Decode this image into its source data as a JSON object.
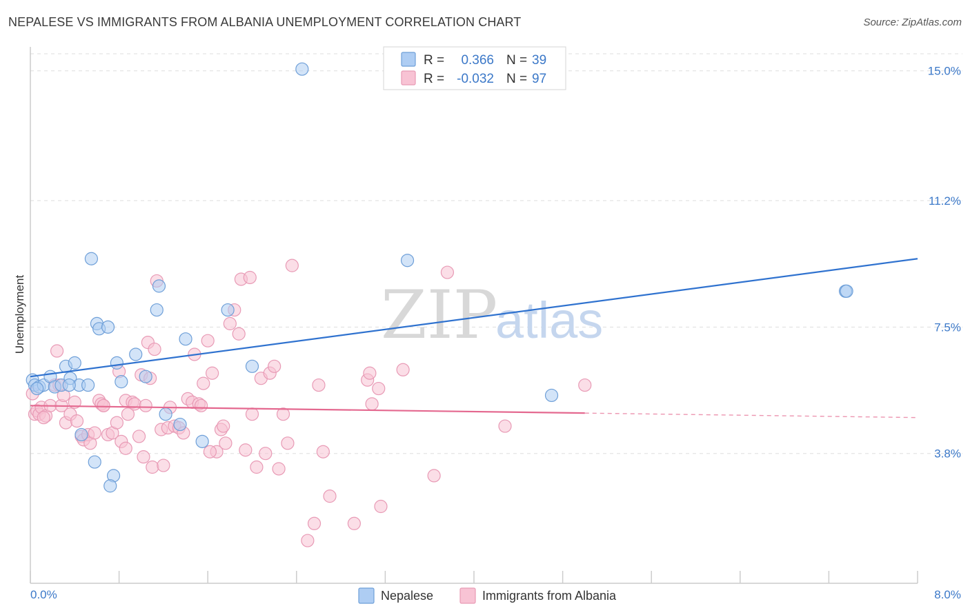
{
  "title": "NEPALESE VS IMMIGRANTS FROM ALBANIA UNEMPLOYMENT CORRELATION CHART",
  "source": "Source: ZipAtlas.com",
  "watermark": {
    "zip": "ZIP",
    "atlas": "atlas"
  },
  "legend_box": {
    "rows": [
      {
        "r_label": "R =",
        "r_value": "0.366",
        "n_label": "N =",
        "n_value": "39"
      },
      {
        "r_label": "R =",
        "r_value": "-0.032",
        "n_label": "N =",
        "n_value": "97"
      }
    ]
  },
  "bottom_legend": {
    "items": [
      "Nepalese",
      "Immigrants from Albania"
    ]
  },
  "colors": {
    "nepalese_fill": "#aecdf3",
    "nepalese_stroke": "#6e9fd8",
    "nepalese_line": "#2f72cf",
    "albania_fill": "#f8c3d4",
    "albania_stroke": "#e89ab5",
    "albania_line": "#e4688f",
    "tick_text": "#3b78c8",
    "grid": "#dddddd"
  },
  "chart_data": {
    "type": "scatter",
    "title": "NEPALESE VS IMMIGRANTS FROM ALBANIA UNEMPLOYMENT CORRELATION CHART",
    "xlabel": "",
    "ylabel": "Unemployment",
    "xlim": [
      0.0,
      8.0
    ],
    "ylim": [
      0.0,
      15.7
    ],
    "x_tick_labels": [
      "0.0%",
      "8.0%"
    ],
    "y_ticks": [
      3.8,
      7.5,
      11.2,
      15.0
    ],
    "y_tick_labels": [
      "3.8%",
      "7.5%",
      "11.2%",
      "15.0%"
    ],
    "grid": true,
    "series": [
      {
        "name": "Nepalese",
        "trend": {
          "x": [
            0.0,
            8.0
          ],
          "y": [
            6.05,
            9.5
          ],
          "solid_to": 8.0
        },
        "points": [
          [
            0.02,
            5.95
          ],
          [
            0.04,
            5.8
          ],
          [
            0.08,
            5.75
          ],
          [
            0.12,
            5.8
          ],
          [
            0.18,
            6.05
          ],
          [
            0.22,
            5.75
          ],
          [
            0.28,
            5.8
          ],
          [
            0.32,
            6.35
          ],
          [
            0.36,
            6.0
          ],
          [
            0.4,
            6.45
          ],
          [
            0.44,
            5.8
          ],
          [
            0.52,
            5.8
          ],
          [
            0.6,
            7.6
          ],
          [
            0.62,
            7.45
          ],
          [
            0.7,
            7.5
          ],
          [
            0.78,
            6.45
          ],
          [
            0.82,
            5.9
          ],
          [
            0.95,
            6.7
          ],
          [
            1.04,
            6.05
          ],
          [
            1.14,
            8.0
          ],
          [
            1.16,
            8.7
          ],
          [
            1.22,
            4.95
          ],
          [
            1.35,
            4.65
          ],
          [
            1.4,
            7.15
          ],
          [
            1.55,
            4.15
          ],
          [
            1.78,
            8.0
          ],
          [
            2.0,
            6.35
          ],
          [
            2.45,
            15.05
          ],
          [
            3.4,
            9.45
          ],
          [
            4.7,
            5.5
          ],
          [
            7.35,
            8.55
          ],
          [
            7.36,
            8.55
          ],
          [
            0.46,
            4.35
          ],
          [
            0.58,
            3.55
          ],
          [
            0.75,
            3.15
          ],
          [
            0.72,
            2.85
          ],
          [
            0.55,
            9.5
          ],
          [
            0.35,
            5.8
          ],
          [
            0.06,
            5.7
          ]
        ]
      },
      {
        "name": "Immigrants from Albania",
        "trend": {
          "x": [
            0.0,
            8.0
          ],
          "y": [
            5.2,
            4.85
          ],
          "solid_to": 5.0
        },
        "points": [
          [
            0.02,
            5.55
          ],
          [
            0.04,
            4.95
          ],
          [
            0.06,
            5.05
          ],
          [
            0.08,
            4.95
          ],
          [
            0.1,
            5.15
          ],
          [
            0.14,
            4.9
          ],
          [
            0.18,
            5.2
          ],
          [
            0.22,
            5.8
          ],
          [
            0.24,
            6.8
          ],
          [
            0.28,
            5.2
          ],
          [
            0.3,
            5.5
          ],
          [
            0.32,
            4.7
          ],
          [
            0.36,
            4.95
          ],
          [
            0.4,
            5.3
          ],
          [
            0.42,
            4.75
          ],
          [
            0.46,
            4.3
          ],
          [
            0.48,
            4.2
          ],
          [
            0.52,
            4.35
          ],
          [
            0.54,
            4.1
          ],
          [
            0.58,
            4.4
          ],
          [
            0.62,
            5.35
          ],
          [
            0.64,
            5.25
          ],
          [
            0.66,
            5.2
          ],
          [
            0.7,
            4.35
          ],
          [
            0.74,
            4.4
          ],
          [
            0.78,
            4.7
          ],
          [
            0.8,
            6.2
          ],
          [
            0.82,
            4.15
          ],
          [
            0.86,
            5.35
          ],
          [
            0.88,
            4.95
          ],
          [
            0.92,
            5.3
          ],
          [
            0.94,
            5.25
          ],
          [
            0.98,
            4.3
          ],
          [
            1.0,
            6.1
          ],
          [
            1.02,
            3.7
          ],
          [
            1.04,
            5.2
          ],
          [
            1.06,
            7.05
          ],
          [
            1.08,
            6.0
          ],
          [
            1.1,
            3.4
          ],
          [
            1.12,
            6.85
          ],
          [
            1.14,
            8.85
          ],
          [
            1.18,
            4.5
          ],
          [
            1.2,
            3.45
          ],
          [
            1.24,
            4.55
          ],
          [
            1.26,
            5.15
          ],
          [
            1.3,
            4.6
          ],
          [
            1.34,
            4.55
          ],
          [
            1.38,
            4.4
          ],
          [
            1.42,
            5.4
          ],
          [
            1.46,
            5.3
          ],
          [
            1.48,
            6.7
          ],
          [
            1.52,
            5.25
          ],
          [
            1.54,
            5.2
          ],
          [
            1.56,
            5.85
          ],
          [
            1.6,
            7.1
          ],
          [
            1.64,
            6.15
          ],
          [
            1.68,
            3.85
          ],
          [
            1.72,
            4.5
          ],
          [
            1.74,
            4.6
          ],
          [
            1.76,
            4.1
          ],
          [
            1.8,
            7.6
          ],
          [
            1.84,
            8.0
          ],
          [
            1.88,
            7.3
          ],
          [
            1.9,
            8.9
          ],
          [
            1.94,
            3.9
          ],
          [
            1.98,
            8.95
          ],
          [
            2.0,
            4.95
          ],
          [
            2.04,
            3.4
          ],
          [
            2.08,
            6.0
          ],
          [
            2.12,
            3.8
          ],
          [
            2.16,
            6.15
          ],
          [
            2.2,
            6.35
          ],
          [
            2.24,
            3.35
          ],
          [
            2.28,
            4.95
          ],
          [
            2.32,
            4.1
          ],
          [
            2.36,
            9.3
          ],
          [
            2.5,
            1.25
          ],
          [
            2.56,
            1.75
          ],
          [
            2.6,
            5.8
          ],
          [
            2.64,
            3.85
          ],
          [
            2.7,
            2.55
          ],
          [
            2.92,
            1.75
          ],
          [
            3.04,
            5.95
          ],
          [
            3.06,
            6.15
          ],
          [
            3.08,
            5.25
          ],
          [
            3.14,
            5.7
          ],
          [
            3.16,
            2.25
          ],
          [
            3.36,
            6.25
          ],
          [
            3.64,
            3.15
          ],
          [
            3.76,
            9.1
          ],
          [
            4.28,
            4.6
          ],
          [
            5.0,
            5.8
          ],
          [
            0.66,
            5.2
          ],
          [
            0.86,
            3.95
          ],
          [
            1.62,
            3.85
          ],
          [
            0.12,
            4.85
          ],
          [
            0.26,
            5.8
          ]
        ]
      }
    ]
  }
}
